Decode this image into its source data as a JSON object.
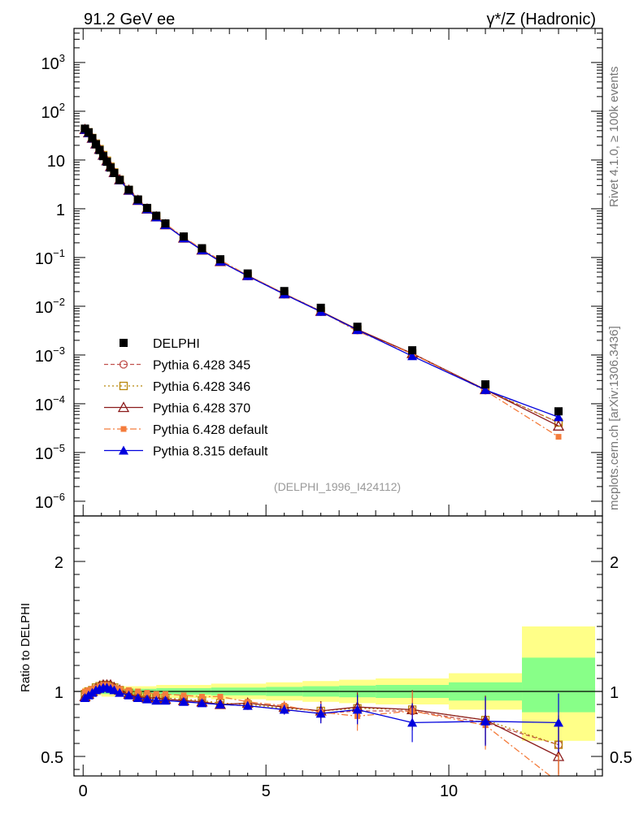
{
  "header": {
    "left_title": "91.2 GeV ee",
    "right_title": "γ*/Z (Hadronic)",
    "side_rivet": "Rivet 4.1.0, ≥ 100k events",
    "side_mcplots": "mcplots.cern.ch [arXiv:1306.3436]",
    "watermark": "(DELPHI_1996_I424112)"
  },
  "chart_data": [
    {
      "type": "scatter",
      "panel": "main",
      "yscale": "log",
      "xlim": [
        -0.25,
        14.2
      ],
      "ylim": [
        5e-07,
        5000
      ],
      "yticks": [
        {
          "value": 1e-06,
          "base": "10",
          "exp": "−6"
        },
        {
          "value": 1e-05,
          "base": "10",
          "exp": "−5"
        },
        {
          "value": 0.0001,
          "base": "10",
          "exp": "−4"
        },
        {
          "value": 0.001,
          "base": "10",
          "exp": "−3"
        },
        {
          "value": 0.01,
          "base": "10",
          "exp": "−2"
        },
        {
          "value": 0.1,
          "base": "10",
          "exp": "−1"
        },
        {
          "value": 1,
          "base": "1",
          "exp": ""
        },
        {
          "value": 10,
          "base": "10",
          "exp": ""
        },
        {
          "value": 100,
          "base": "10",
          "exp": "2"
        },
        {
          "value": 1000,
          "base": "10",
          "exp": "3"
        }
      ],
      "x": [
        0.05,
        0.15,
        0.25,
        0.35,
        0.45,
        0.55,
        0.65,
        0.75,
        0.85,
        1.0,
        1.25,
        1.5,
        1.75,
        2.0,
        2.25,
        2.75,
        3.25,
        3.75,
        4.5,
        5.5,
        6.5,
        7.5,
        9.0,
        11.0,
        13.0
      ],
      "delphi": [
        44,
        37,
        28,
        21,
        16,
        12,
        9.2,
        7.0,
        5.4,
        3.9,
        2.45,
        1.55,
        1.04,
        0.72,
        0.5,
        0.27,
        0.155,
        0.092,
        0.047,
        0.0205,
        0.0093,
        0.0038,
        0.00125,
        0.00025,
        7e-05
      ],
      "legend": [
        {
          "label": "DELPHI",
          "key": "delphi"
        },
        {
          "label": "Pythia 6.428 345",
          "key": "p345"
        },
        {
          "label": "Pythia 6.428 346",
          "key": "p346"
        },
        {
          "label": "Pythia 6.428 370",
          "key": "p370"
        },
        {
          "label": "Pythia 6.428 default",
          "key": "p6def"
        },
        {
          "label": "Pythia 8.315 default",
          "key": "p8def"
        }
      ],
      "colors": {
        "delphi": "#000000",
        "p345": "#c0504d",
        "p346": "#b8860b",
        "p370": "#8b1a1a",
        "p6def": "#f47c3c",
        "p8def": "#0000dd"
      }
    },
    {
      "type": "scatter",
      "panel": "ratio",
      "ylabel": "Ratio to DELPHI",
      "ylim": [
        0.35,
        2.35
      ],
      "yticks": [
        {
          "value": 0.5,
          "label": "0.5"
        },
        {
          "value": 1,
          "label": "1"
        },
        {
          "value": 2,
          "label": "2"
        }
      ],
      "xticks": [
        {
          "value": 0,
          "label": "0"
        },
        {
          "value": 5,
          "label": "5"
        },
        {
          "value": 10,
          "label": "10"
        }
      ],
      "bands": [
        {
          "x": [
            0.0,
            0.5
          ],
          "green": [
            0.985,
            1.015
          ],
          "yellow": [
            0.97,
            1.03
          ]
        },
        {
          "x": [
            0.5,
            2.0
          ],
          "green": [
            0.98,
            1.02
          ],
          "yellow": [
            0.96,
            1.04
          ]
        },
        {
          "x": [
            2.0,
            3.5
          ],
          "green": [
            0.975,
            1.025
          ],
          "yellow": [
            0.95,
            1.05
          ]
        },
        {
          "x": [
            3.5,
            5.0
          ],
          "green": [
            0.97,
            1.03
          ],
          "yellow": [
            0.94,
            1.06
          ]
        },
        {
          "x": [
            5.0,
            6.0
          ],
          "green": [
            0.965,
            1.035
          ],
          "yellow": [
            0.93,
            1.07
          ]
        },
        {
          "x": [
            6.0,
            7.0
          ],
          "green": [
            0.96,
            1.04
          ],
          "yellow": [
            0.92,
            1.08
          ]
        },
        {
          "x": [
            7.0,
            8.0
          ],
          "green": [
            0.955,
            1.045
          ],
          "yellow": [
            0.91,
            1.09
          ]
        },
        {
          "x": [
            8.0,
            10.0
          ],
          "green": [
            0.95,
            1.05
          ],
          "yellow": [
            0.9,
            1.1
          ]
        },
        {
          "x": [
            10.0,
            12.0
          ],
          "green": [
            0.93,
            1.07
          ],
          "yellow": [
            0.86,
            1.14
          ]
        },
        {
          "x": [
            12.0,
            14.0
          ],
          "green": [
            0.84,
            1.26
          ],
          "yellow": [
            0.62,
            1.5
          ]
        }
      ],
      "series": [
        {
          "key": "p345",
          "values": [
            0.97,
            0.99,
            1.0,
            1.02,
            1.03,
            1.04,
            1.04,
            1.03,
            1.02,
            1.0,
            0.98,
            0.96,
            0.95,
            0.95,
            0.94,
            0.93,
            0.92,
            0.9,
            0.89,
            0.86,
            0.83,
            0.85,
            0.85,
            0.76,
            0.59
          ]
        },
        {
          "key": "p346",
          "values": [
            0.98,
            1.0,
            1.01,
            1.03,
            1.04,
            1.05,
            1.05,
            1.04,
            1.03,
            1.01,
            0.99,
            0.97,
            0.96,
            0.95,
            0.95,
            0.94,
            0.93,
            0.91,
            0.9,
            0.87,
            0.85,
            0.87,
            0.86,
            0.78,
            0.59
          ]
        },
        {
          "key": "p370",
          "values": [
            0.96,
            0.98,
            1.0,
            1.02,
            1.04,
            1.05,
            1.05,
            1.05,
            1.03,
            1.01,
            0.98,
            0.96,
            0.95,
            0.95,
            0.94,
            0.93,
            0.92,
            0.9,
            0.91,
            0.88,
            0.85,
            0.88,
            0.86,
            0.78,
            0.5
          ]
        },
        {
          "key": "p6def",
          "values": [
            1.0,
            1.01,
            1.02,
            1.03,
            1.04,
            1.05,
            1.05,
            1.04,
            1.03,
            1.02,
            1.01,
            1.0,
            0.99,
            0.98,
            0.98,
            0.97,
            0.96,
            0.96,
            0.92,
            0.89,
            0.84,
            0.81,
            0.85,
            0.74,
            0.3
          ]
        },
        {
          "key": "p8def",
          "values": [
            0.95,
            0.97,
            0.99,
            1.01,
            1.02,
            1.03,
            1.03,
            1.02,
            1.01,
            0.99,
            0.97,
            0.95,
            0.94,
            0.93,
            0.93,
            0.92,
            0.91,
            0.9,
            0.89,
            0.86,
            0.83,
            0.86,
            0.76,
            0.77,
            0.76
          ]
        }
      ]
    }
  ]
}
